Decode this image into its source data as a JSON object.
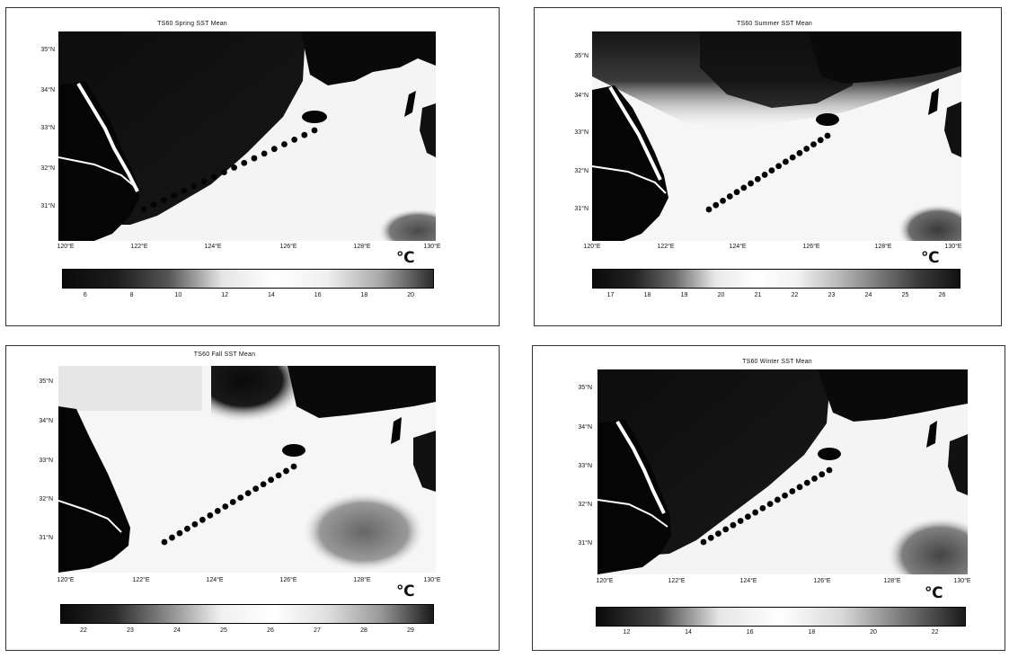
{
  "unit": "℃",
  "station_count": 18,
  "panels": [
    {
      "id": "spring",
      "title": "TS60 Spring SST Mean",
      "lat_labels": [
        "35°N",
        "34°N",
        "33°N",
        "32°N",
        "31°N"
      ],
      "lon_labels": [
        "120°E",
        "122°E",
        "124°E",
        "126°E",
        "128°E",
        "130°E"
      ],
      "colorbar": {
        "ticks": [
          "6",
          "8",
          "10",
          "12",
          "14",
          "16",
          "18",
          "20"
        ],
        "stops": [
          "#0a0a0a",
          "#1c1c1c",
          "#555555",
          "#e4e4e4",
          "#ffffff",
          "#efefef",
          "#a8a8a8",
          "#2c2c2c"
        ]
      }
    },
    {
      "id": "summer",
      "title": "TS60 Summer SST Mean",
      "lat_labels": [
        "35°N",
        "34°N",
        "33°N",
        "32°N",
        "31°N"
      ],
      "lon_labels": [
        "120°E",
        "122°E",
        "124°E",
        "126°E",
        "128°E",
        "130°E"
      ],
      "colorbar": {
        "ticks": [
          "17",
          "18",
          "19",
          "20",
          "21",
          "22",
          "23",
          "24",
          "25",
          "26"
        ],
        "stops": [
          "#0a0a0a",
          "#222222",
          "#6a6a6a",
          "#e8e8e8",
          "#ffffff",
          "#f2f2f2",
          "#bbbbbb",
          "#7a7a7a",
          "#3a3a3a",
          "#111111"
        ]
      }
    },
    {
      "id": "fall",
      "title": "TS60 Fall SST Mean",
      "lat_labels": [
        "35°N",
        "34°N",
        "33°N",
        "32°N",
        "31°N"
      ],
      "lon_labels": [
        "120°E",
        "122°E",
        "124°E",
        "126°E",
        "128°E",
        "130°E"
      ],
      "colorbar": {
        "ticks": [
          "22",
          "23",
          "24",
          "25",
          "26",
          "27",
          "28",
          "29"
        ],
        "stops": [
          "#0a0a0a",
          "#2a2a2a",
          "#8a8a8a",
          "#f0f0f0",
          "#ffffff",
          "#e0e0e0",
          "#9a9a9a",
          "#1a1a1a"
        ]
      }
    },
    {
      "id": "winter",
      "title": "TS60 Winter SST Mean",
      "lat_labels": [
        "35°N",
        "34°N",
        "33°N",
        "32°N",
        "31°N"
      ],
      "lon_labels": [
        "120°E",
        "122°E",
        "124°E",
        "126°E",
        "128°E",
        "130°E"
      ],
      "colorbar": {
        "ticks": [
          "12",
          "14",
          "16",
          "18",
          "20",
          "22"
        ],
        "stops": [
          "#0a0a0a",
          "#444444",
          "#e6e6e6",
          "#ffffff",
          "#d8d8d8",
          "#777777",
          "#1a1a1a"
        ]
      }
    }
  ]
}
